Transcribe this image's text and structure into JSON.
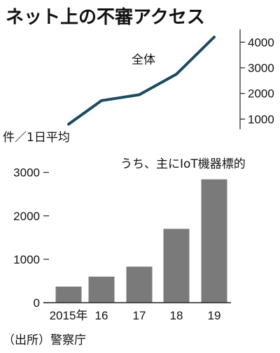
{
  "title": "ネット上の不審アクセス",
  "unit_label": "件／1日平均",
  "source": "（出所）警察庁",
  "colors": {
    "line": "#1d4a5f",
    "bar": "#7a7a7a",
    "axis": "#222222"
  },
  "chart_data": [
    {
      "type": "line",
      "series": [
        {
          "name": "全体",
          "x": [
            "2015年",
            "16",
            "17",
            "18",
            "19"
          ],
          "values": [
            800,
            1720,
            1950,
            2750,
            4200
          ]
        }
      ],
      "yticks": [
        1000,
        2000,
        3000,
        4000
      ],
      "ylim": [
        600,
        4500
      ],
      "yaxis_position": "right"
    },
    {
      "type": "bar",
      "categories": [
        "2015年",
        "16",
        "17",
        "18",
        "19"
      ],
      "series": [
        {
          "name": "うち、主にIoT機器標的",
          "values": [
            370,
            600,
            830,
            1700,
            2840
          ]
        }
      ],
      "yticks": [
        0,
        1000,
        2000,
        3000
      ],
      "ylim": [
        0,
        3300
      ]
    }
  ]
}
